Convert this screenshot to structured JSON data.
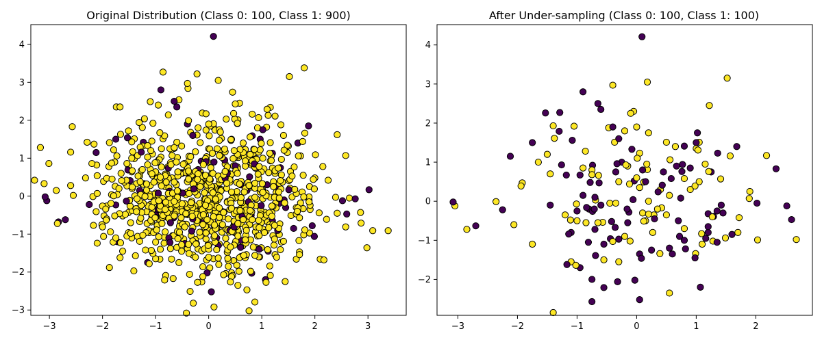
{
  "colors": {
    "class_0": "#440154",
    "class_1": "#fde725",
    "edge": "#000000"
  },
  "chart_data": [
    {
      "type": "scatter",
      "title": "Original Distribution (Class 0: 100, Class 1: 900)",
      "xlabel": "",
      "ylabel": "",
      "xlim": [
        -3.35,
        3.72
      ],
      "ylim": [
        -3.14,
        4.52
      ],
      "xticks": [
        -3,
        -2,
        -1,
        0,
        1,
        2,
        3
      ],
      "yticks": [
        -3,
        -2,
        -1,
        0,
        1,
        2,
        3,
        4
      ],
      "grid": false,
      "class_counts": {
        "class_0": 100,
        "class_1": 900
      },
      "sample_seed": 7,
      "series": [
        {
          "class": 0,
          "points": [
            [
              -3.08,
              -0.02
            ],
            [
              -3.05,
              -0.12
            ],
            [
              -2.83,
              -0.68
            ],
            [
              -2.7,
              -0.62
            ],
            [
              -2.25,
              -0.22
            ],
            [
              -2.12,
              1.15
            ],
            [
              -1.75,
              1.5
            ],
            [
              -1.75,
              -0.23
            ],
            [
              -1.15,
              -1.75
            ],
            [
              -0.9,
              2.8
            ],
            [
              -0.72,
              -0.7
            ],
            [
              -0.65,
              2.5
            ],
            [
              -0.6,
              2.35
            ],
            [
              -0.4,
              1.9
            ],
            [
              -0.3,
              1.6
            ],
            [
              -0.03,
              -2.02
            ],
            [
              0.05,
              -2.52
            ],
            [
              0.09,
              4.21
            ],
            [
              0.18,
              -1.3
            ],
            [
              0.25,
              -0.4
            ],
            [
              0.5,
              0.8
            ],
            [
              0.6,
              -1.35
            ],
            [
              0.65,
              -0.2
            ],
            [
              0.75,
              -0.15
            ],
            [
              0.9,
              0.8
            ],
            [
              0.97,
              1.5
            ],
            [
              1.02,
              1.75
            ],
            [
              1.07,
              -2.2
            ],
            [
              1.12,
              -1.45
            ],
            [
              1.2,
              -0.65
            ],
            [
              1.35,
              0.75
            ],
            [
              1.42,
              -0.1
            ],
            [
              1.45,
              -0.3
            ],
            [
              1.6,
              -0.85
            ],
            [
              1.68,
              1.4
            ],
            [
              2.52,
              -0.12
            ],
            [
              2.6,
              -0.47
            ],
            [
              -0.5,
              0.6
            ],
            [
              -0.2,
              0.7
            ],
            [
              0.1,
              0.9
            ],
            [
              0.35,
              0.6
            ],
            [
              -0.85,
              0.3
            ],
            [
              -0.3,
              -0.6
            ],
            [
              -0.1,
              -0.7
            ],
            [
              0.4,
              -0.9
            ],
            [
              0.8,
              -0.5
            ],
            [
              0.2,
              0.0
            ],
            [
              -0.6,
              -0.2
            ],
            [
              -0.95,
              -0.35
            ],
            [
              -1.3,
              0.15
            ],
            [
              1.1,
              0.3
            ],
            [
              0.6,
              0.3
            ],
            [
              -0.75,
              -1.1
            ],
            [
              -0.45,
              -1.25
            ],
            [
              0.15,
              -1.1
            ],
            [
              0.95,
              -1.4
            ],
            [
              1.3,
              -0.9
            ],
            [
              -1.0,
              -0.5
            ],
            [
              -0.15,
              0.3
            ],
            [
              0.3,
              0.95
            ]
          ]
        },
        {
          "class": 1,
          "points": [
            [
              -3.1,
              0.33
            ],
            [
              -2.85,
              -0.72
            ],
            [
              -1.92,
              0.47
            ],
            [
              -1.75,
              -1.1
            ],
            [
              -1.45,
              1.0
            ],
            [
              -1.25,
              0.7
            ],
            [
              -1.05,
              1.92
            ],
            [
              -1.0,
              -1.65
            ],
            [
              -0.9,
              -0.5
            ],
            [
              -0.4,
              2.97
            ],
            [
              -0.3,
              -1.55
            ],
            [
              0.0,
              1.9
            ],
            [
              0.18,
              3.05
            ],
            [
              0.55,
              -2.35
            ],
            [
              1.52,
              3.15
            ],
            [
              1.9,
              0.25
            ],
            [
              1.65,
              -0.3
            ],
            [
              -0.2,
              1.8
            ],
            [
              0.2,
              1.75
            ],
            [
              0.65,
              1.4
            ]
          ]
        }
      ]
    },
    {
      "type": "scatter",
      "title": "After Under-sampling (Class 0: 100, Class 1: 100)",
      "xlabel": "",
      "ylabel": "",
      "xlim": [
        -3.35,
        2.95
      ],
      "ylim": [
        -2.92,
        4.52
      ],
      "xticks": [
        -3,
        -2,
        -1,
        0,
        1,
        2
      ],
      "yticks": [
        -2,
        -1,
        0,
        1,
        2,
        3,
        4
      ],
      "grid": false,
      "class_counts": {
        "class_0": 100,
        "class_1": 100
      },
      "sample_seed": 11,
      "series": [
        {
          "class": 0,
          "points": [
            [
              -3.08,
              -0.02
            ],
            [
              -2.7,
              -0.63
            ],
            [
              -2.25,
              -0.22
            ],
            [
              -2.12,
              1.15
            ],
            [
              -1.75,
              1.5
            ],
            [
              -1.45,
              -0.1
            ],
            [
              -0.9,
              2.8
            ],
            [
              -0.75,
              -2.0
            ],
            [
              -0.75,
              -2.57
            ],
            [
              -0.65,
              2.5
            ],
            [
              -0.6,
              2.35
            ],
            [
              -0.4,
              1.9
            ],
            [
              -0.3,
              1.6
            ],
            [
              -0.03,
              -2.02
            ],
            [
              0.05,
              -2.52
            ],
            [
              0.09,
              4.21
            ],
            [
              0.6,
              -1.35
            ],
            [
              1.02,
              1.75
            ],
            [
              1.07,
              -2.2
            ],
            [
              1.42,
              -0.1
            ],
            [
              1.68,
              1.4
            ],
            [
              2.52,
              -0.12
            ],
            [
              2.6,
              -0.47
            ],
            [
              -1.0,
              -0.25
            ],
            [
              -0.8,
              -0.2
            ],
            [
              -0.7,
              0.1
            ],
            [
              -0.35,
              0.75
            ],
            [
              -0.25,
              1.0
            ],
            [
              0.1,
              0.8
            ],
            [
              0.3,
              -0.45
            ],
            [
              0.45,
              0.75
            ],
            [
              0.7,
              -0.5
            ],
            [
              0.9,
              0.85
            ],
            [
              1.0,
              1.5
            ],
            [
              1.25,
              0.75
            ],
            [
              1.35,
              -0.25
            ],
            [
              1.45,
              -0.3
            ],
            [
              1.6,
              -0.85
            ],
            [
              -1.1,
              -0.8
            ],
            [
              -0.95,
              -1.7
            ],
            [
              -0.55,
              -1.1
            ],
            [
              -0.15,
              -0.55
            ],
            [
              0.05,
              -1.35
            ],
            [
              0.25,
              -1.25
            ],
            [
              0.8,
              -1.0
            ],
            [
              0.98,
              -1.45
            ],
            [
              1.2,
              -0.65
            ],
            [
              1.35,
              -1.05
            ],
            [
              0.15,
              0.5
            ],
            [
              -0.6,
              -0.1
            ]
          ]
        },
        {
          "class": 1,
          "points": [
            [
              -3.05,
              -0.12
            ],
            [
              -2.85,
              -0.72
            ],
            [
              -1.92,
              0.47
            ],
            [
              -1.75,
              -1.1
            ],
            [
              -1.65,
              1.0
            ],
            [
              -1.5,
              1.2
            ],
            [
              -1.45,
              0.7
            ],
            [
              -1.05,
              1.92
            ],
            [
              -1.1,
              -1.55
            ],
            [
              -1.0,
              -0.5
            ],
            [
              -0.9,
              0.85
            ],
            [
              -0.75,
              0.8
            ],
            [
              -0.4,
              2.97
            ],
            [
              -0.3,
              -1.55
            ],
            [
              0.0,
              1.9
            ],
            [
              0.18,
              3.05
            ],
            [
              0.2,
              1.75
            ],
            [
              0.55,
              -2.35
            ],
            [
              0.65,
              1.4
            ],
            [
              1.0,
              1.35
            ],
            [
              1.52,
              3.15
            ],
            [
              1.9,
              0.25
            ],
            [
              1.7,
              -0.8
            ],
            [
              1.72,
              -0.42
            ],
            [
              -0.2,
              1.8
            ],
            [
              -0.1,
              2.25
            ],
            [
              -0.05,
              2.3
            ],
            [
              -0.3,
              0.5
            ],
            [
              -0.15,
              0.9
            ],
            [
              0.0,
              0.6
            ],
            [
              0.05,
              0.35
            ],
            [
              0.2,
              0.0
            ],
            [
              0.4,
              0.3
            ],
            [
              0.55,
              0.15
            ],
            [
              0.9,
              0.3
            ],
            [
              1.05,
              0.5
            ],
            [
              1.15,
              0.95
            ],
            [
              -0.65,
              -0.55
            ],
            [
              -0.45,
              -0.05
            ],
            [
              -0.2,
              -0.9
            ],
            [
              0.15,
              -0.5
            ],
            [
              0.35,
              -0.2
            ],
            [
              0.5,
              -0.35
            ],
            [
              0.8,
              -0.7
            ],
            [
              1.1,
              -1.1
            ],
            [
              -1.2,
              -0.35
            ],
            [
              -0.85,
              -0.55
            ],
            [
              -0.55,
              -1.5
            ],
            [
              -0.35,
              -0.05
            ],
            [
              0.1,
              -0.3
            ]
          ]
        }
      ]
    }
  ]
}
